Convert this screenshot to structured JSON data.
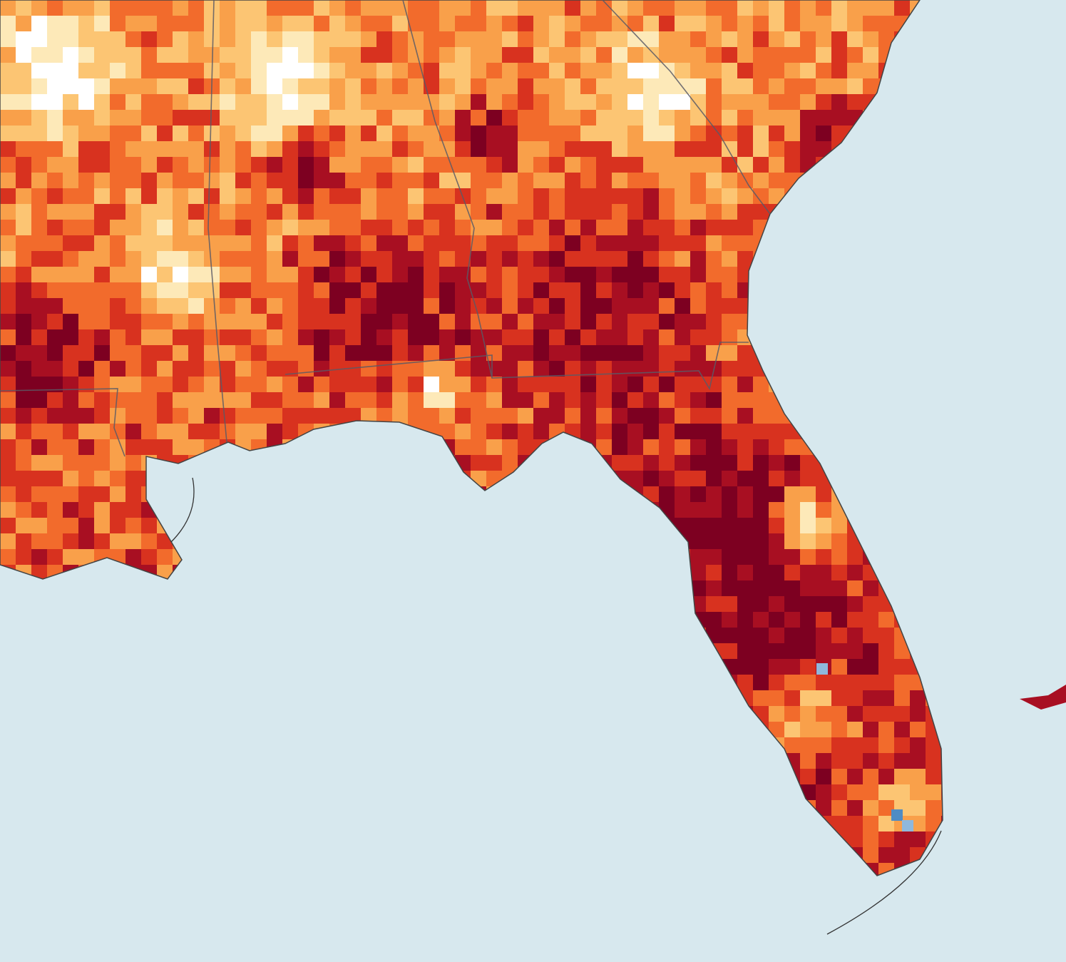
{
  "map": {
    "ocean_color": "#d7e8ee",
    "border_color": "#5a5a66",
    "palette": [
      "#ffffff",
      "#fde9b8",
      "#fcc573",
      "#f9a04a",
      "#f26b2c",
      "#d8321f",
      "#a80f22",
      "#7d0021"
    ],
    "anomaly_palette": [
      "#8fb8dc",
      "#4f8cc4"
    ]
  }
}
